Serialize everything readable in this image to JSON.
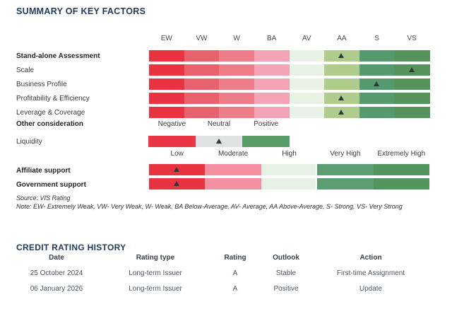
{
  "summary": {
    "title": "SUMMARY OF KEY FACTORS",
    "title_color": "#1e3a5c",
    "source_note": "Source: VIS Rating",
    "note": "Note: EW- Extremely Weak, VW- Very Weak, W- Weak, BA Below-Average, AV- Average, AA Above-Average, S- Strong, VS- Very Strong"
  },
  "chart_data": {
    "type": "heatmap",
    "scale_columns": [
      "EW",
      "VW",
      "W",
      "BA",
      "AV",
      "AA",
      "S",
      "VS"
    ],
    "scale_colors": [
      "#e93340",
      "#e9616d",
      "#ee7d89",
      "#f4a4b4",
      "#e8f3e6",
      "#afcc8d",
      "#549a6e",
      "#55935b"
    ],
    "marker_color": "#2e383c",
    "factors": [
      {
        "label": "Stand-alone Assessment",
        "bold": true,
        "value": "AA"
      },
      {
        "label": "Scale",
        "bold": false,
        "value": "VS"
      },
      {
        "label": "Business Profile",
        "bold": false,
        "value": "S"
      },
      {
        "label": "Profitability & Efficiency",
        "bold": false,
        "value": "AA"
      },
      {
        "label": "Leverage & Coverage",
        "bold": false,
        "value": "AA"
      }
    ],
    "other_consideration": {
      "label": "Other consideration",
      "options": [
        "Negative",
        "Neutral",
        "Positive"
      ]
    },
    "liquidity": {
      "label": "Liquidity",
      "segments": [
        "Low",
        "Moderate",
        "High"
      ],
      "colors": [
        "#ea3544",
        "#e0e1e1",
        "#579b68"
      ],
      "value": "Moderate"
    },
    "support_scale": [
      "Low",
      "Moderate",
      "High",
      "Very High",
      "Extremely High"
    ],
    "support_colors": [
      "#e93340",
      "#f58fa2",
      "#e6f2e3",
      "#5b9c73",
      "#53935e"
    ],
    "supports": [
      {
        "label": "Affiliate support",
        "value": "Low"
      },
      {
        "label": "Government support",
        "value": "Low"
      }
    ]
  },
  "history": {
    "title": "CREDIT RATING HISTORY",
    "columns": [
      "Date",
      "Rating type",
      "Rating",
      "Outlook",
      "Action"
    ],
    "rows": [
      [
        "25 October 2024",
        "Long-term Issuer",
        "A",
        "Stable",
        "First-time Assignment"
      ],
      [
        "06 January 2026",
        "Long-term Issuer",
        "A",
        "Positive",
        "Update"
      ]
    ]
  }
}
